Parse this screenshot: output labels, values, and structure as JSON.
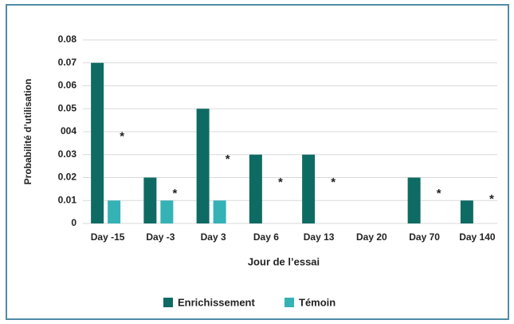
{
  "chart_data": {
    "type": "bar",
    "x_label": "Jour de l’essai",
    "y_label": "Probabilité d’utilisation",
    "categories": [
      "Day -15",
      "Day -3",
      "Day 3",
      "Day 6",
      "Day 13",
      "Day 20",
      "Day 70",
      "Day 140"
    ],
    "series": [
      {
        "name": "Enrichissement",
        "color": "#0e6b63",
        "values": [
          0.07,
          0.02,
          0.05,
          0.03,
          0.03,
          0,
          0.02,
          0.01
        ]
      },
      {
        "name": "Témoin",
        "color": "#35b2b5",
        "values": [
          0.01,
          0.01,
          0.01,
          0,
          0,
          0,
          0,
          0
        ]
      }
    ],
    "annotations": [
      "*",
      "*",
      "*",
      "*",
      "*",
      null,
      "*",
      "*"
    ],
    "ylim": [
      0,
      0.08
    ],
    "yticks": [
      0,
      0.01,
      0.02,
      0.03,
      {
        "value": 0.04,
        "label": "004"
      },
      0.05,
      0.06,
      0.07,
      0.08
    ],
    "grid": true,
    "legend": "bottom"
  }
}
